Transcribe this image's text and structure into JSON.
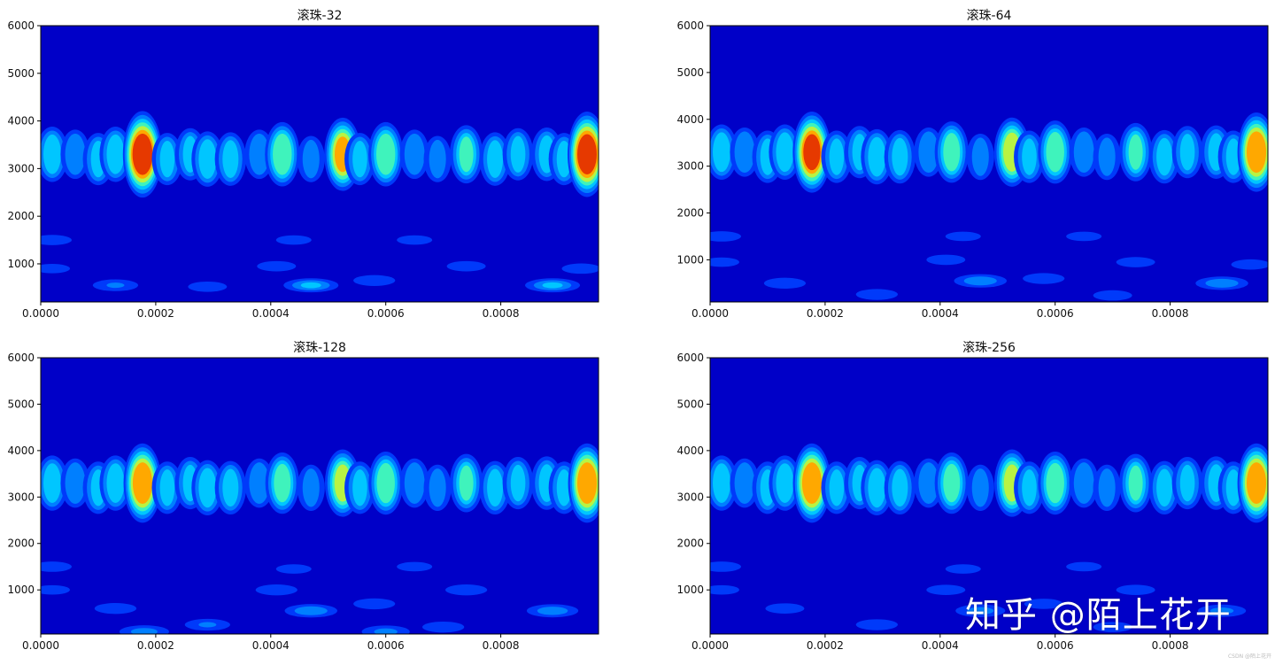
{
  "chart_data": [
    {
      "type": "heatmap",
      "title": "滚珠-32",
      "x_ticks": [
        "0.0000",
        "0.0002",
        "0.0004",
        "0.0006",
        "0.0008"
      ],
      "y_ticks": [
        "1000",
        "2000",
        "3000",
        "4000",
        "5000",
        "6000"
      ],
      "xlim": [
        0,
        0.00097
      ],
      "ylim": [
        200,
        6000
      ],
      "colormap": "jet",
      "background_color": "#0000c8",
      "blobs": [
        {
          "x": 2e-05,
          "y": 3300,
          "i": 0.45
        },
        {
          "x": 6e-05,
          "y": 3300,
          "i": 0.35
        },
        {
          "x": 0.0001,
          "y": 3200,
          "i": 0.4
        },
        {
          "x": 0.00013,
          "y": 3300,
          "i": 0.45
        },
        {
          "x": 0.000177,
          "y": 3300,
          "i": 0.97
        },
        {
          "x": 0.00022,
          "y": 3200,
          "i": 0.4
        },
        {
          "x": 0.00026,
          "y": 3300,
          "i": 0.4
        },
        {
          "x": 0.00029,
          "y": 3200,
          "i": 0.45
        },
        {
          "x": 0.00033,
          "y": 3200,
          "i": 0.42
        },
        {
          "x": 0.00038,
          "y": 3300,
          "i": 0.35
        },
        {
          "x": 0.00042,
          "y": 3300,
          "i": 0.6
        },
        {
          "x": 0.00047,
          "y": 3200,
          "i": 0.3
        },
        {
          "x": 0.000525,
          "y": 3300,
          "i": 0.75
        },
        {
          "x": 0.000555,
          "y": 3200,
          "i": 0.4
        },
        {
          "x": 0.0006,
          "y": 3300,
          "i": 0.6
        },
        {
          "x": 0.00065,
          "y": 3300,
          "i": 0.35
        },
        {
          "x": 0.00069,
          "y": 3200,
          "i": 0.3
        },
        {
          "x": 0.00074,
          "y": 3300,
          "i": 0.5
        },
        {
          "x": 0.00079,
          "y": 3200,
          "i": 0.42
        },
        {
          "x": 0.00083,
          "y": 3300,
          "i": 0.4
        },
        {
          "x": 0.00088,
          "y": 3300,
          "i": 0.42
        },
        {
          "x": 0.00091,
          "y": 3200,
          "i": 0.4
        },
        {
          "x": 0.00095,
          "y": 3300,
          "i": 0.95
        },
        {
          "x": 2e-05,
          "y": 1500,
          "i": 0.2
        },
        {
          "x": 0.00044,
          "y": 1500,
          "i": 0.18
        },
        {
          "x": 0.00065,
          "y": 1500,
          "i": 0.18
        },
        {
          "x": 2e-05,
          "y": 900,
          "i": 0.18
        },
        {
          "x": 0.00041,
          "y": 950,
          "i": 0.2
        },
        {
          "x": 0.00074,
          "y": 950,
          "i": 0.2
        },
        {
          "x": 0.00094,
          "y": 900,
          "i": 0.2
        },
        {
          "x": 0.00013,
          "y": 550,
          "i": 0.25
        },
        {
          "x": 0.00047,
          "y": 550,
          "i": 0.4
        },
        {
          "x": 0.00089,
          "y": 550,
          "i": 0.4
        },
        {
          "x": 0.00058,
          "y": 650,
          "i": 0.22
        },
        {
          "x": 0.00029,
          "y": 520,
          "i": 0.2
        }
      ]
    },
    {
      "type": "heatmap",
      "title": "滚珠-64",
      "x_ticks": [
        "0.0000",
        "0.0002",
        "0.0004",
        "0.0006",
        "0.0008"
      ],
      "y_ticks": [
        "1000",
        "2000",
        "3000",
        "4000",
        "5000",
        "6000"
      ],
      "xlim": [
        0,
        0.00097
      ],
      "ylim": [
        100,
        6000
      ],
      "colormap": "jet",
      "background_color": "#0000c8",
      "blobs": [
        {
          "x": 2e-05,
          "y": 3300,
          "i": 0.45
        },
        {
          "x": 6e-05,
          "y": 3300,
          "i": 0.35
        },
        {
          "x": 0.0001,
          "y": 3200,
          "i": 0.4
        },
        {
          "x": 0.00013,
          "y": 3300,
          "i": 0.45
        },
        {
          "x": 0.000177,
          "y": 3300,
          "i": 0.88
        },
        {
          "x": 0.00022,
          "y": 3200,
          "i": 0.4
        },
        {
          "x": 0.00026,
          "y": 3300,
          "i": 0.4
        },
        {
          "x": 0.00029,
          "y": 3200,
          "i": 0.45
        },
        {
          "x": 0.00033,
          "y": 3200,
          "i": 0.42
        },
        {
          "x": 0.00038,
          "y": 3300,
          "i": 0.35
        },
        {
          "x": 0.00042,
          "y": 3300,
          "i": 0.55
        },
        {
          "x": 0.00047,
          "y": 3200,
          "i": 0.3
        },
        {
          "x": 0.000525,
          "y": 3300,
          "i": 0.68
        },
        {
          "x": 0.000555,
          "y": 3200,
          "i": 0.4
        },
        {
          "x": 0.0006,
          "y": 3300,
          "i": 0.58
        },
        {
          "x": 0.00065,
          "y": 3300,
          "i": 0.35
        },
        {
          "x": 0.00069,
          "y": 3200,
          "i": 0.3
        },
        {
          "x": 0.00074,
          "y": 3300,
          "i": 0.5
        },
        {
          "x": 0.00079,
          "y": 3200,
          "i": 0.42
        },
        {
          "x": 0.00083,
          "y": 3300,
          "i": 0.4
        },
        {
          "x": 0.00088,
          "y": 3300,
          "i": 0.42
        },
        {
          "x": 0.00091,
          "y": 3200,
          "i": 0.4
        },
        {
          "x": 0.00095,
          "y": 3300,
          "i": 0.85
        },
        {
          "x": 2e-05,
          "y": 1500,
          "i": 0.2
        },
        {
          "x": 0.00044,
          "y": 1500,
          "i": 0.18
        },
        {
          "x": 0.00065,
          "y": 1500,
          "i": 0.18
        },
        {
          "x": 2e-05,
          "y": 950,
          "i": 0.18
        },
        {
          "x": 0.00041,
          "y": 1000,
          "i": 0.2
        },
        {
          "x": 0.00074,
          "y": 950,
          "i": 0.2
        },
        {
          "x": 0.00094,
          "y": 900,
          "i": 0.2
        },
        {
          "x": 0.00013,
          "y": 500,
          "i": 0.22
        },
        {
          "x": 0.00047,
          "y": 550,
          "i": 0.35
        },
        {
          "x": 0.00089,
          "y": 500,
          "i": 0.35
        },
        {
          "x": 0.00058,
          "y": 600,
          "i": 0.22
        },
        {
          "x": 0.00029,
          "y": 260,
          "i": 0.22
        },
        {
          "x": 0.0007,
          "y": 240,
          "i": 0.2
        }
      ]
    },
    {
      "type": "heatmap",
      "title": "滚珠-128",
      "x_ticks": [
        "0.0000",
        "0.0002",
        "0.0004",
        "0.0006",
        "0.0008"
      ],
      "y_ticks": [
        "1000",
        "2000",
        "3000",
        "4000",
        "5000",
        "6000"
      ],
      "xlim": [
        0,
        0.00097
      ],
      "ylim": [
        50,
        6000
      ],
      "colormap": "jet",
      "background_color": "#0000c8",
      "blobs": [
        {
          "x": 2e-05,
          "y": 3300,
          "i": 0.45
        },
        {
          "x": 6e-05,
          "y": 3300,
          "i": 0.35
        },
        {
          "x": 0.0001,
          "y": 3200,
          "i": 0.4
        },
        {
          "x": 0.00013,
          "y": 3300,
          "i": 0.45
        },
        {
          "x": 0.000177,
          "y": 3300,
          "i": 0.85
        },
        {
          "x": 0.00022,
          "y": 3200,
          "i": 0.4
        },
        {
          "x": 0.00026,
          "y": 3300,
          "i": 0.4
        },
        {
          "x": 0.00029,
          "y": 3200,
          "i": 0.45
        },
        {
          "x": 0.00033,
          "y": 3200,
          "i": 0.42
        },
        {
          "x": 0.00038,
          "y": 3300,
          "i": 0.35
        },
        {
          "x": 0.00042,
          "y": 3300,
          "i": 0.55
        },
        {
          "x": 0.00047,
          "y": 3200,
          "i": 0.3
        },
        {
          "x": 0.000525,
          "y": 3300,
          "i": 0.65
        },
        {
          "x": 0.000555,
          "y": 3200,
          "i": 0.4
        },
        {
          "x": 0.0006,
          "y": 3300,
          "i": 0.58
        },
        {
          "x": 0.00065,
          "y": 3300,
          "i": 0.35
        },
        {
          "x": 0.00069,
          "y": 3200,
          "i": 0.3
        },
        {
          "x": 0.00074,
          "y": 3300,
          "i": 0.5
        },
        {
          "x": 0.00079,
          "y": 3200,
          "i": 0.42
        },
        {
          "x": 0.00083,
          "y": 3300,
          "i": 0.4
        },
        {
          "x": 0.00088,
          "y": 3300,
          "i": 0.42
        },
        {
          "x": 0.00091,
          "y": 3200,
          "i": 0.4
        },
        {
          "x": 0.00095,
          "y": 3300,
          "i": 0.85
        },
        {
          "x": 2e-05,
          "y": 1500,
          "i": 0.2
        },
        {
          "x": 0.00044,
          "y": 1450,
          "i": 0.18
        },
        {
          "x": 0.00065,
          "y": 1500,
          "i": 0.18
        },
        {
          "x": 2e-05,
          "y": 1000,
          "i": 0.18
        },
        {
          "x": 0.00041,
          "y": 1000,
          "i": 0.22
        },
        {
          "x": 0.00074,
          "y": 1000,
          "i": 0.22
        },
        {
          "x": 0.00013,
          "y": 600,
          "i": 0.22
        },
        {
          "x": 0.00047,
          "y": 550,
          "i": 0.35
        },
        {
          "x": 0.00089,
          "y": 550,
          "i": 0.33
        },
        {
          "x": 0.00058,
          "y": 700,
          "i": 0.22
        },
        {
          "x": 0.00029,
          "y": 250,
          "i": 0.25
        },
        {
          "x": 0.0007,
          "y": 200,
          "i": 0.22
        },
        {
          "x": 0.00018,
          "y": 100,
          "i": 0.3
        },
        {
          "x": 0.0006,
          "y": 100,
          "i": 0.28
        }
      ]
    },
    {
      "type": "heatmap",
      "title": "滚珠-256",
      "x_ticks": [
        "0.0000",
        "0.0002",
        "0.0004",
        "0.0006",
        "0.0008"
      ],
      "y_ticks": [
        "1000",
        "2000",
        "3000",
        "4000",
        "5000",
        "6000"
      ],
      "xlim": [
        0,
        0.00097
      ],
      "ylim": [
        50,
        6000
      ],
      "colormap": "jet",
      "background_color": "#0000c8",
      "blobs": [
        {
          "x": 2e-05,
          "y": 3300,
          "i": 0.45
        },
        {
          "x": 6e-05,
          "y": 3300,
          "i": 0.35
        },
        {
          "x": 0.0001,
          "y": 3200,
          "i": 0.4
        },
        {
          "x": 0.00013,
          "y": 3300,
          "i": 0.45
        },
        {
          "x": 0.000177,
          "y": 3300,
          "i": 0.85
        },
        {
          "x": 0.00022,
          "y": 3200,
          "i": 0.4
        },
        {
          "x": 0.00026,
          "y": 3300,
          "i": 0.4
        },
        {
          "x": 0.00029,
          "y": 3200,
          "i": 0.45
        },
        {
          "x": 0.00033,
          "y": 3200,
          "i": 0.42
        },
        {
          "x": 0.00038,
          "y": 3300,
          "i": 0.35
        },
        {
          "x": 0.00042,
          "y": 3300,
          "i": 0.55
        },
        {
          "x": 0.00047,
          "y": 3200,
          "i": 0.3
        },
        {
          "x": 0.000525,
          "y": 3300,
          "i": 0.65
        },
        {
          "x": 0.000555,
          "y": 3200,
          "i": 0.4
        },
        {
          "x": 0.0006,
          "y": 3300,
          "i": 0.58
        },
        {
          "x": 0.00065,
          "y": 3300,
          "i": 0.35
        },
        {
          "x": 0.00069,
          "y": 3200,
          "i": 0.3
        },
        {
          "x": 0.00074,
          "y": 3300,
          "i": 0.5
        },
        {
          "x": 0.00079,
          "y": 3200,
          "i": 0.42
        },
        {
          "x": 0.00083,
          "y": 3300,
          "i": 0.4
        },
        {
          "x": 0.00088,
          "y": 3300,
          "i": 0.42
        },
        {
          "x": 0.00091,
          "y": 3200,
          "i": 0.4
        },
        {
          "x": 0.00095,
          "y": 3300,
          "i": 0.85
        },
        {
          "x": 2e-05,
          "y": 1500,
          "i": 0.2
        },
        {
          "x": 0.00044,
          "y": 1450,
          "i": 0.18
        },
        {
          "x": 0.00065,
          "y": 1500,
          "i": 0.18
        },
        {
          "x": 2e-05,
          "y": 1000,
          "i": 0.18
        },
        {
          "x": 0.00041,
          "y": 1000,
          "i": 0.2
        },
        {
          "x": 0.00074,
          "y": 1000,
          "i": 0.2
        },
        {
          "x": 0.00013,
          "y": 600,
          "i": 0.2
        },
        {
          "x": 0.00047,
          "y": 550,
          "i": 0.3
        },
        {
          "x": 0.00089,
          "y": 550,
          "i": 0.28
        },
        {
          "x": 0.00058,
          "y": 700,
          "i": 0.2
        },
        {
          "x": 0.00029,
          "y": 250,
          "i": 0.22
        },
        {
          "x": 0.0007,
          "y": 200,
          "i": 0.2
        }
      ]
    }
  ],
  "watermark": {
    "text": "知乎 @陌上花开"
  },
  "credit": {
    "text": "CSDN @陌上花开"
  }
}
